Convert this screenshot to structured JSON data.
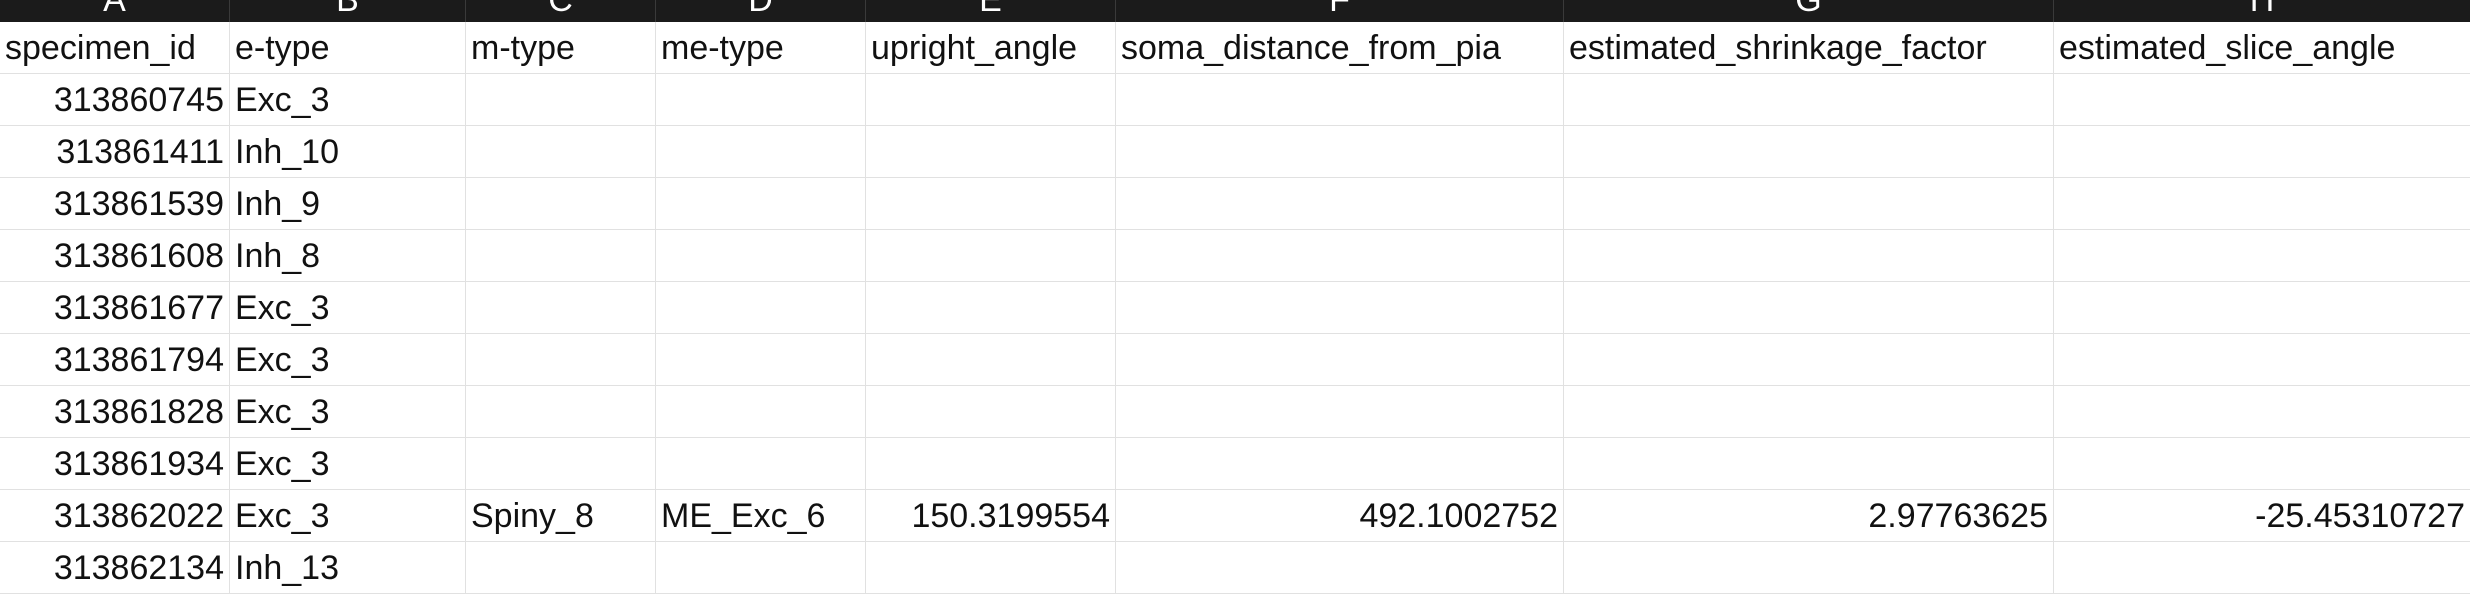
{
  "columns": [
    "A",
    "B",
    "C",
    "D",
    "E",
    "F",
    "G",
    "H"
  ],
  "header_row": [
    "specimen_id",
    "e-type",
    "m-type",
    "me-type",
    "upright_angle",
    "soma_distance_from_pia",
    "estimated_shrinkage_factor",
    "estimated_slice_angle"
  ],
  "rows": [
    [
      "313860745",
      "Exc_3",
      "",
      "",
      "",
      "",
      "",
      ""
    ],
    [
      "313861411",
      "Inh_10",
      "",
      "",
      "",
      "",
      "",
      ""
    ],
    [
      "313861539",
      "Inh_9",
      "",
      "",
      "",
      "",
      "",
      ""
    ],
    [
      "313861608",
      "Inh_8",
      "",
      "",
      "",
      "",
      "",
      ""
    ],
    [
      "313861677",
      "Exc_3",
      "",
      "",
      "",
      "",
      "",
      ""
    ],
    [
      "313861794",
      "Exc_3",
      "",
      "",
      "",
      "",
      "",
      ""
    ],
    [
      "313861828",
      "Exc_3",
      "",
      "",
      "",
      "",
      "",
      ""
    ],
    [
      "313861934",
      "Exc_3",
      "",
      "",
      "",
      "",
      "",
      ""
    ],
    [
      "313862022",
      "Exc_3",
      "Spiny_8",
      "ME_Exc_6",
      "150.3199554",
      "492.1002752",
      "2.97763625",
      "-25.45310727"
    ],
    [
      "313862134",
      "Inh_13",
      "",
      "",
      "",
      "",
      "",
      ""
    ]
  ]
}
